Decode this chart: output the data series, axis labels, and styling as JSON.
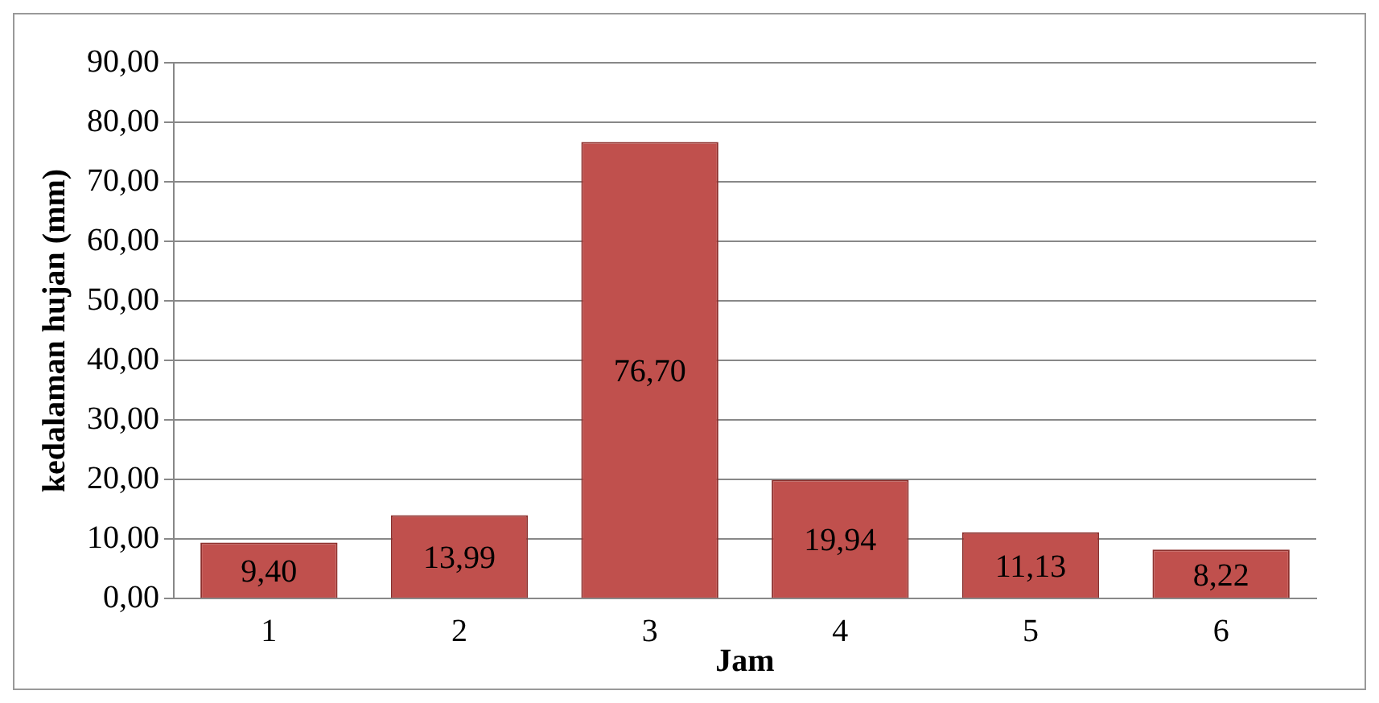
{
  "chart_data": {
    "type": "bar",
    "xlabel": "Jam",
    "ylabel": "kedalaman hujan (mm)",
    "categories": [
      "1",
      "2",
      "3",
      "4",
      "5",
      "6"
    ],
    "values": [
      9.4,
      13.99,
      76.7,
      19.94,
      11.13,
      8.22
    ],
    "value_labels": [
      "9,40",
      "13,99",
      "76,70",
      "19,94",
      "11,13",
      "8,22"
    ],
    "color": "#c0504d",
    "ylim": [
      0,
      90
    ],
    "yticks": [
      {
        "value": 0,
        "label": "0,00"
      },
      {
        "value": 10,
        "label": "10,00"
      },
      {
        "value": 20,
        "label": "20,00"
      },
      {
        "value": 30,
        "label": "30,00"
      },
      {
        "value": 40,
        "label": "40,00"
      },
      {
        "value": 50,
        "label": "50,00"
      },
      {
        "value": 60,
        "label": "60,00"
      },
      {
        "value": 70,
        "label": "70,00"
      },
      {
        "value": 80,
        "label": "80,00"
      },
      {
        "value": 90,
        "label": "90,00"
      }
    ],
    "grid": "y",
    "legend": false
  }
}
